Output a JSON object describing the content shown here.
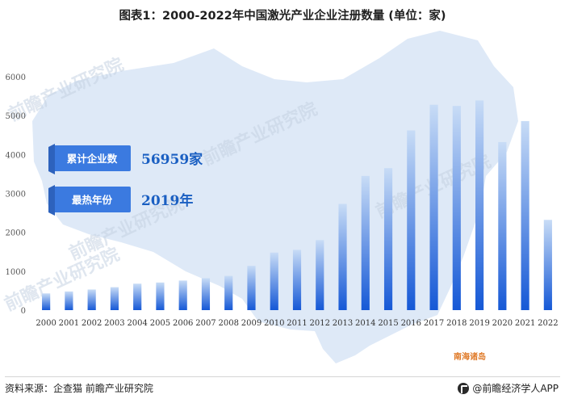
{
  "chart_data": {
    "type": "bar",
    "title": "图表1：2000-2022年中国激光产业企业注册数量 (单位：家)",
    "categories": [
      "2000",
      "2001",
      "2002",
      "2003",
      "2004",
      "2005",
      "2006",
      "2007",
      "2008",
      "2009",
      "2010",
      "2011",
      "2012",
      "2013",
      "2014",
      "2015",
      "2016",
      "2017",
      "2018",
      "2019",
      "2020",
      "2021",
      "2022"
    ],
    "values": [
      430,
      480,
      530,
      590,
      680,
      710,
      760,
      820,
      880,
      1140,
      1480,
      1550,
      1800,
      2730,
      3450,
      3650,
      4620,
      5280,
      5250,
      5390,
      4320,
      4860,
      2320
    ],
    "ylim": [
      0,
      6000
    ],
    "yticks": [
      0,
      1000,
      2000,
      3000,
      4000,
      5000,
      6000
    ],
    "colors": {
      "bar_top": "#c8dcf6",
      "bar_bottom": "#1558d6",
      "map_fill": "#dce8f7",
      "accent": "#1a5fc2",
      "label_box": "#3b7ae0"
    },
    "annotations": [
      {
        "label": "累计企业数",
        "value": "56959家"
      },
      {
        "label": "最热年份",
        "value": "2019年"
      }
    ],
    "map_label": "南海诸岛",
    "watermarks": [
      "前瞻产业研究院",
      "前瞻产业研究院",
      "前瞻产业研究院",
      "前瞻产业研究院",
      "前瞻产业研究院"
    ],
    "grid": false
  },
  "footer": {
    "source": "资料来源：企查猫 前瞻产业研究院",
    "brand": "@前瞻经济学人APP"
  }
}
